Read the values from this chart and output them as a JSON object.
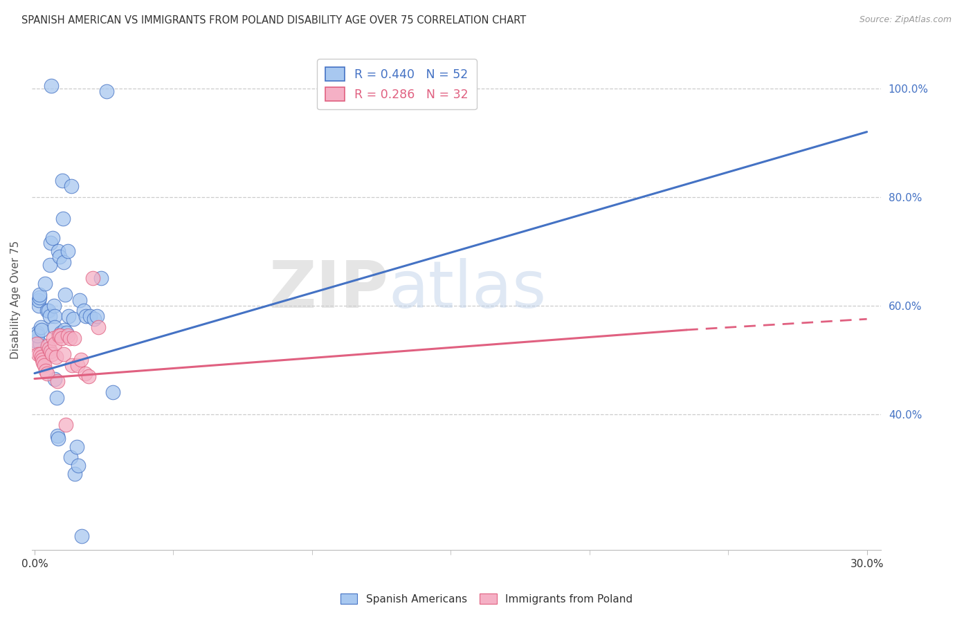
{
  "title": "SPANISH AMERICAN VS IMMIGRANTS FROM POLAND DISABILITY AGE OVER 75 CORRELATION CHART",
  "source": "Source: ZipAtlas.com",
  "ylabel": "Disability Age Over 75",
  "legend_blue_r": "R = 0.440",
  "legend_blue_n": "N = 52",
  "legend_pink_r": "R = 0.286",
  "legend_pink_n": "N = 32",
  "blue_color": "#A8C8F0",
  "pink_color": "#F5B0C5",
  "blue_line_color": "#4472C4",
  "pink_line_color": "#E06080",
  "blue_scatter_x": [
    0.06,
    0.21,
    0.1,
    0.1,
    0.14,
    0.14,
    0.17,
    0.17,
    0.22,
    0.26,
    0.38,
    0.44,
    0.5,
    0.54,
    0.56,
    0.57,
    0.65,
    0.7,
    0.72,
    0.73,
    0.73,
    0.79,
    0.82,
    0.84,
    0.86,
    0.9,
    0.95,
    1.0,
    1.02,
    1.05,
    1.08,
    1.1,
    1.15,
    1.2,
    1.22,
    1.3,
    1.33,
    1.4,
    1.45,
    1.52,
    1.56,
    1.62,
    1.7,
    1.78,
    1.85,
    2.0,
    2.15,
    2.25,
    2.4,
    2.6,
    2.82,
    0.6
  ],
  "blue_scatter_y": [
    53.5,
    53.0,
    55.0,
    54.5,
    60.0,
    61.0,
    61.5,
    62.0,
    56.0,
    55.5,
    64.0,
    59.0,
    59.0,
    58.0,
    67.5,
    71.5,
    72.5,
    60.0,
    46.5,
    58.0,
    56.0,
    43.0,
    36.0,
    35.5,
    70.0,
    69.0,
    55.0,
    83.0,
    76.0,
    68.0,
    55.5,
    62.0,
    55.0,
    70.0,
    58.0,
    32.0,
    82.0,
    57.5,
    29.0,
    34.0,
    30.5,
    61.0,
    17.5,
    59.0,
    58.0,
    58.0,
    57.5,
    58.0,
    65.0,
    99.5,
    44.0,
    100.5
  ],
  "pink_scatter_x": [
    0.08,
    0.12,
    0.2,
    0.25,
    0.27,
    0.3,
    0.35,
    0.4,
    0.45,
    0.48,
    0.52,
    0.57,
    0.62,
    0.68,
    0.72,
    0.78,
    0.82,
    0.88,
    0.92,
    0.97,
    1.05,
    1.12,
    1.2,
    1.28,
    1.35,
    1.42,
    1.55,
    1.68,
    1.82,
    1.95,
    2.1,
    2.3
  ],
  "pink_scatter_y": [
    53.0,
    51.0,
    51.0,
    50.5,
    50.0,
    49.5,
    49.0,
    48.0,
    47.5,
    52.5,
    52.0,
    51.5,
    51.0,
    54.0,
    53.0,
    50.5,
    46.0,
    54.5,
    54.5,
    54.0,
    51.0,
    38.0,
    54.5,
    54.0,
    49.0,
    54.0,
    49.0,
    50.0,
    47.5,
    47.0,
    65.0,
    56.0
  ],
  "blue_line_x0": 0.0,
  "blue_line_y0": 47.5,
  "blue_line_x1": 30.0,
  "blue_line_y1": 92.0,
  "pink_line_x0": 0.0,
  "pink_line_y0": 46.5,
  "pink_line_x1": 23.5,
  "pink_line_y1": 55.5,
  "pink_dash_x0": 23.5,
  "pink_dash_y0": 55.5,
  "pink_dash_x1": 30.0,
  "pink_dash_y1": 57.5,
  "xlim_min": -0.1,
  "xlim_max": 30.5,
  "ylim_min": 15.0,
  "ylim_max": 107.0,
  "yticks": [
    40.0,
    60.0,
    80.0,
    100.0
  ],
  "xtick_positions": [
    0.0,
    30.0
  ],
  "xtick_labels": [
    "0.0%",
    "30.0%"
  ],
  "xtick_minor_positions": [
    5.0,
    10.0,
    15.0,
    20.0,
    25.0
  ],
  "watermark_zip": "ZIP",
  "watermark_atlas": "atlas",
  "bg_color": "#FFFFFF",
  "grid_color": "#CCCCCC"
}
